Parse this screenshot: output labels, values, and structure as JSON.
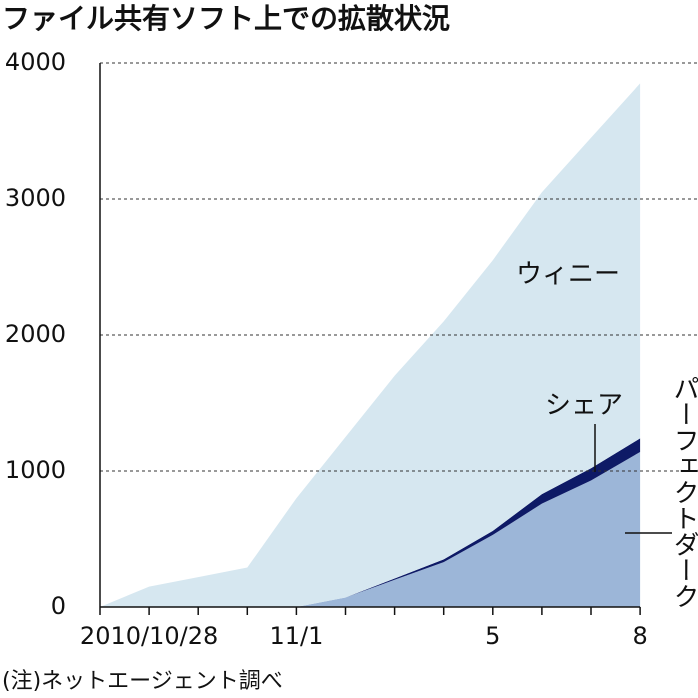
{
  "chart_data": {
    "type": "stacked_area",
    "title": "ファイル共有ソフト上での拡散状況",
    "note": "(注)ネットエージェント調べ",
    "categories": [
      null,
      "2010/10/28",
      null,
      null,
      "11/1",
      null,
      null,
      null,
      "5",
      null,
      null,
      "8"
    ],
    "series": [
      {
        "name": "パーフェクトダーク",
        "color": "#9cb6d8",
        "values": [
          0,
          0,
          0,
          0,
          0,
          70,
          200,
          330,
          530,
          760,
          930,
          1140
        ]
      },
      {
        "name": "シェア",
        "color": "#0e1a66",
        "values": [
          0,
          0,
          0,
          0,
          0,
          0,
          10,
          20,
          30,
          70,
          90,
          100
        ]
      },
      {
        "name": "ウィニー",
        "color": "#d6e7f0",
        "values": [
          0,
          150,
          220,
          290,
          800,
          1180,
          1490,
          1750,
          1990,
          2220,
          2430,
          2610
        ]
      }
    ],
    "ylim": [
      0,
      4000
    ],
    "yticks": [
      0,
      1000,
      2000,
      3000,
      4000
    ],
    "grid": true
  }
}
